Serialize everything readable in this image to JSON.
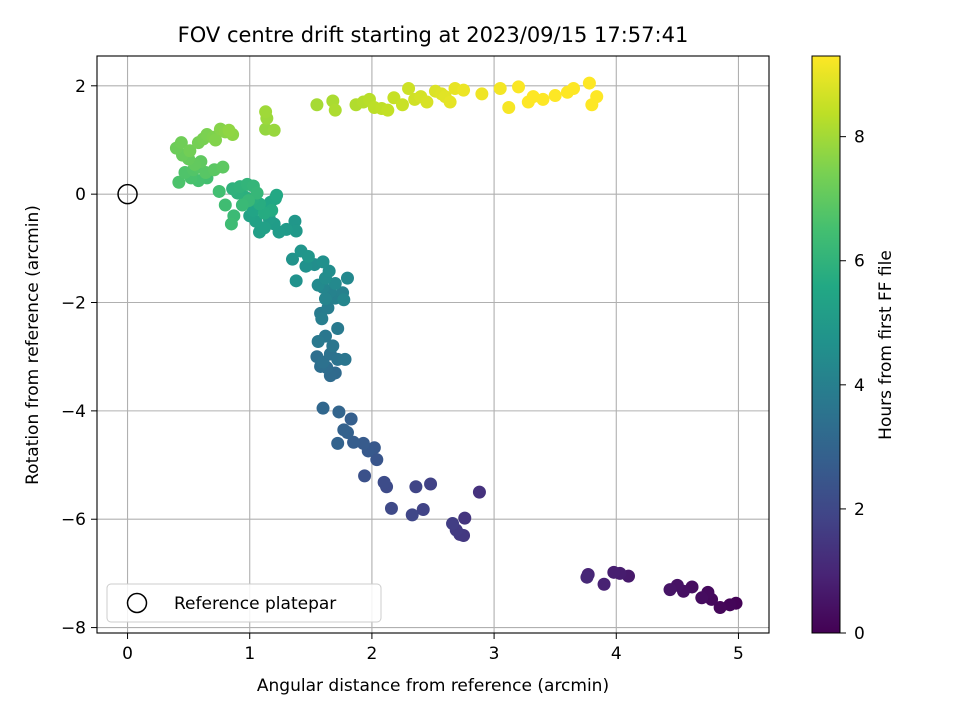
{
  "chart_data": {
    "type": "scatter",
    "title": "FOV centre drift starting at 2023/09/15 17:57:41",
    "xlabel": "Angular distance from reference (arcmin)",
    "ylabel": "Rotation from reference (arcmin)",
    "xlim": [
      -0.25,
      5.25
    ],
    "ylim": [
      -8.1,
      2.55
    ],
    "xticks": [
      0,
      1,
      2,
      3,
      4,
      5
    ],
    "xtick_labels": [
      "0",
      "1",
      "2",
      "3",
      "4",
      "5"
    ],
    "yticks": [
      -8,
      -6,
      -4,
      -2,
      0,
      2
    ],
    "ytick_labels": [
      "−8",
      "−6",
      "−4",
      "−2",
      "0",
      "2"
    ],
    "grid": true,
    "legend": {
      "position": "lower-left",
      "label": "Reference platepar"
    },
    "reference_point": {
      "x": 0,
      "y": 0
    },
    "colorbar": {
      "label": "Hours from first FF file",
      "range": [
        0,
        9.3
      ],
      "ticks": [
        0,
        2,
        4,
        6,
        8
      ],
      "tick_labels": [
        "0",
        "2",
        "4",
        "6",
        "8"
      ],
      "colormap": "viridis"
    },
    "series": [
      {
        "points": [
          [
            4.98,
            -7.55,
            0.05
          ],
          [
            4.93,
            -7.58,
            0.1
          ],
          [
            4.85,
            -7.63,
            0.15
          ],
          [
            4.78,
            -7.48,
            0.2
          ],
          [
            4.75,
            -7.35,
            0.25
          ],
          [
            4.7,
            -7.45,
            0.3
          ],
          [
            4.62,
            -7.25,
            0.35
          ],
          [
            4.55,
            -7.33,
            0.4
          ],
          [
            4.5,
            -7.22,
            0.45
          ],
          [
            4.44,
            -7.3,
            0.5
          ],
          [
            4.1,
            -7.05,
            0.65
          ],
          [
            4.03,
            -7.0,
            0.72
          ],
          [
            3.98,
            -6.98,
            0.8
          ],
          [
            3.9,
            -7.2,
            0.88
          ],
          [
            3.77,
            -7.02,
            0.96
          ],
          [
            3.76,
            -7.07,
            1.04
          ],
          [
            2.88,
            -5.5,
            1.35
          ],
          [
            2.76,
            -5.98,
            1.42
          ],
          [
            2.75,
            -6.3,
            1.5
          ],
          [
            2.72,
            -6.28,
            1.55
          ],
          [
            2.69,
            -6.2,
            1.6
          ],
          [
            2.66,
            -6.08,
            1.68
          ],
          [
            2.48,
            -5.35,
            1.8
          ],
          [
            2.42,
            -5.82,
            1.85
          ],
          [
            2.36,
            -5.4,
            1.9
          ],
          [
            2.33,
            -5.92,
            1.95
          ],
          [
            2.16,
            -5.8,
            2.05
          ],
          [
            2.12,
            -5.4,
            2.1
          ],
          [
            2.1,
            -5.32,
            2.15
          ],
          [
            1.94,
            -5.2,
            2.3
          ],
          [
            2.04,
            -4.9,
            2.45
          ],
          [
            2.02,
            -4.68,
            2.55
          ],
          [
            1.97,
            -4.74,
            2.6
          ],
          [
            1.93,
            -4.6,
            2.65
          ],
          [
            1.85,
            -4.58,
            2.75
          ],
          [
            1.83,
            -4.15,
            2.8
          ],
          [
            1.8,
            -4.4,
            2.85
          ],
          [
            1.77,
            -4.35,
            2.9
          ],
          [
            1.72,
            -4.6,
            2.95
          ],
          [
            1.73,
            -4.02,
            3.0
          ],
          [
            1.6,
            -3.95,
            3.1
          ],
          [
            1.7,
            -3.3,
            3.2
          ],
          [
            1.66,
            -3.35,
            3.25
          ],
          [
            1.63,
            -3.2,
            3.3
          ],
          [
            1.58,
            -3.18,
            3.35
          ],
          [
            1.55,
            -3.0,
            3.4
          ],
          [
            1.6,
            -3.1,
            3.45
          ],
          [
            1.66,
            -2.95,
            3.5
          ],
          [
            1.72,
            -3.05,
            3.55
          ],
          [
            1.78,
            -3.05,
            3.6
          ],
          [
            1.68,
            -2.8,
            3.65
          ],
          [
            1.62,
            -2.62,
            3.7
          ],
          [
            1.56,
            -2.72,
            3.75
          ],
          [
            1.72,
            -2.48,
            3.8
          ],
          [
            1.58,
            -2.2,
            3.85
          ],
          [
            1.64,
            -2.1,
            3.9
          ],
          [
            1.59,
            -2.3,
            3.95
          ],
          [
            1.7,
            -1.92,
            4.0
          ],
          [
            1.76,
            -1.82,
            4.05
          ],
          [
            1.66,
            -1.8,
            4.1
          ],
          [
            1.62,
            -1.93,
            4.15
          ],
          [
            1.6,
            -1.72,
            4.2
          ],
          [
            1.77,
            -1.95,
            4.25
          ],
          [
            1.8,
            -1.55,
            4.3
          ],
          [
            1.7,
            -1.65,
            4.35
          ],
          [
            1.56,
            -1.68,
            4.4
          ],
          [
            1.62,
            -1.55,
            4.45
          ],
          [
            1.65,
            -1.42,
            4.5
          ],
          [
            1.53,
            -1.3,
            4.55
          ],
          [
            1.6,
            -1.25,
            4.6
          ],
          [
            1.46,
            -1.33,
            4.65
          ],
          [
            1.38,
            -1.6,
            4.7
          ],
          [
            1.35,
            -1.2,
            4.75
          ],
          [
            1.42,
            -1.05,
            4.8
          ],
          [
            1.48,
            -1.15,
            4.85
          ],
          [
            1.37,
            -0.5,
            4.9
          ],
          [
            1.38,
            -0.68,
            4.95
          ],
          [
            1.3,
            -0.65,
            5.0
          ],
          [
            1.24,
            -0.7,
            5.05
          ],
          [
            1.2,
            -0.55,
            5.1
          ],
          [
            1.16,
            -0.45,
            5.15
          ],
          [
            1.08,
            -0.7,
            5.2
          ],
          [
            1.12,
            -0.62,
            5.25
          ],
          [
            1.05,
            -0.5,
            5.3
          ],
          [
            1.0,
            -0.4,
            5.35
          ],
          [
            1.03,
            -0.3,
            5.4
          ],
          [
            1.1,
            -0.22,
            5.45
          ],
          [
            1.17,
            -0.15,
            5.5
          ],
          [
            1.21,
            -0.08,
            5.55
          ],
          [
            1.22,
            -0.02,
            5.6
          ],
          [
            1.18,
            -0.3,
            5.65
          ],
          [
            1.12,
            -0.35,
            5.7
          ],
          [
            1.08,
            -0.18,
            5.75
          ],
          [
            1.03,
            -0.08,
            5.8
          ],
          [
            0.96,
            -0.05,
            5.85
          ],
          [
            0.9,
            0.02,
            5.9
          ],
          [
            0.86,
            0.1,
            5.95
          ],
          [
            0.92,
            0.14,
            6.0
          ],
          [
            0.98,
            0.18,
            6.05
          ],
          [
            1.03,
            0.15,
            6.1
          ],
          [
            1.06,
            0.02,
            6.15
          ],
          [
            0.99,
            -0.12,
            6.2
          ],
          [
            0.94,
            -0.2,
            6.25
          ],
          [
            0.87,
            -0.4,
            6.3
          ],
          [
            0.85,
            -0.55,
            6.35
          ],
          [
            0.8,
            -0.2,
            6.4
          ],
          [
            0.75,
            0.05,
            6.45
          ],
          [
            0.65,
            0.3,
            6.5
          ],
          [
            0.58,
            0.25,
            6.55
          ],
          [
            0.52,
            0.3,
            6.6
          ],
          [
            0.42,
            0.22,
            6.65
          ],
          [
            0.47,
            0.4,
            6.7
          ],
          [
            0.54,
            0.45,
            6.75
          ],
          [
            0.58,
            0.5,
            6.8
          ],
          [
            0.64,
            0.4,
            6.85
          ],
          [
            0.71,
            0.45,
            6.9
          ],
          [
            0.78,
            0.5,
            6.95
          ],
          [
            0.6,
            0.6,
            7.0
          ],
          [
            0.55,
            0.55,
            7.05
          ],
          [
            0.5,
            0.65,
            7.1
          ],
          [
            0.45,
            0.72,
            7.15
          ],
          [
            0.4,
            0.85,
            7.2
          ],
          [
            0.44,
            0.95,
            7.25
          ],
          [
            0.51,
            0.8,
            7.3
          ],
          [
            0.58,
            0.95,
            7.35
          ],
          [
            0.62,
            1.02,
            7.4
          ],
          [
            0.65,
            1.1,
            7.45
          ],
          [
            0.7,
            1.05,
            7.5
          ],
          [
            0.72,
            1.0,
            7.55
          ],
          [
            0.76,
            1.2,
            7.6
          ],
          [
            0.8,
            1.15,
            7.65
          ],
          [
            0.86,
            1.1,
            7.7
          ],
          [
            0.83,
            1.18,
            7.75
          ],
          [
            1.13,
            1.2,
            7.8
          ],
          [
            1.2,
            1.18,
            7.85
          ],
          [
            1.14,
            1.4,
            7.9
          ],
          [
            1.13,
            1.52,
            7.95
          ],
          [
            1.55,
            1.65,
            8.05
          ],
          [
            1.68,
            1.72,
            8.1
          ],
          [
            1.7,
            1.55,
            8.15
          ],
          [
            1.87,
            1.65,
            8.2
          ],
          [
            1.93,
            1.7,
            8.25
          ],
          [
            1.98,
            1.75,
            8.3
          ],
          [
            2.02,
            1.6,
            8.35
          ],
          [
            2.08,
            1.58,
            8.4
          ],
          [
            2.13,
            1.55,
            8.45
          ],
          [
            2.18,
            1.78,
            8.5
          ],
          [
            2.25,
            1.65,
            8.55
          ],
          [
            2.3,
            1.95,
            8.6
          ],
          [
            2.35,
            1.75,
            8.65
          ],
          [
            2.4,
            1.8,
            8.7
          ],
          [
            2.45,
            1.7,
            8.75
          ],
          [
            2.52,
            1.9,
            8.8
          ],
          [
            2.57,
            1.85,
            8.85
          ],
          [
            2.6,
            1.8,
            8.9
          ],
          [
            2.64,
            1.7,
            8.95
          ],
          [
            2.68,
            1.95,
            9.0
          ],
          [
            2.75,
            1.92,
            9.05
          ],
          [
            2.9,
            1.85,
            9.1
          ],
          [
            3.05,
            1.95,
            9.15
          ],
          [
            3.12,
            1.6,
            9.2
          ],
          [
            3.2,
            1.98,
            9.25
          ],
          [
            3.28,
            1.7,
            9.3
          ],
          [
            3.32,
            1.8,
            9.35
          ],
          [
            3.4,
            1.75,
            9.4
          ],
          [
            3.5,
            1.82,
            9.45
          ],
          [
            3.6,
            1.88,
            9.5
          ],
          [
            3.65,
            1.95,
            9.55
          ],
          [
            3.78,
            2.05,
            9.6
          ],
          [
            3.8,
            1.65,
            9.65
          ],
          [
            3.84,
            1.8,
            9.7
          ]
        ]
      }
    ]
  }
}
